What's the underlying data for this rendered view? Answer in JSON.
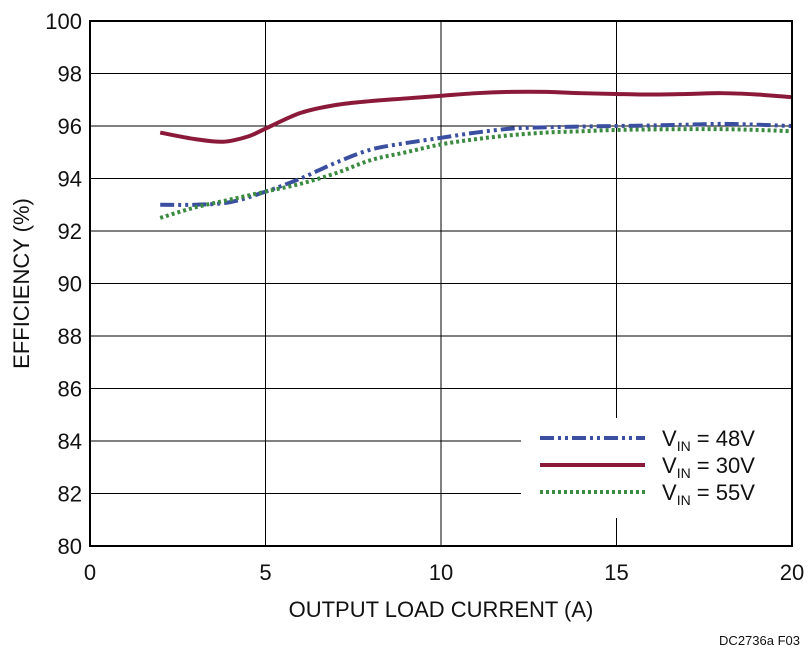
{
  "chart_data": {
    "type": "line",
    "title": "",
    "xlabel": "OUTPUT LOAD CURRENT (A)",
    "ylabel": "EFFICIENCY (%)",
    "xlim": [
      0,
      20
    ],
    "ylim": [
      80,
      100
    ],
    "xticks": [
      "0",
      "5",
      "10",
      "15",
      "20"
    ],
    "yticks": [
      "80",
      "82",
      "84",
      "86",
      "88",
      "90",
      "92",
      "94",
      "96",
      "98",
      "100"
    ],
    "grid": true,
    "legend_position": "bottom-right",
    "series": [
      {
        "legend_main": "V",
        "legend_sub": "IN",
        "legend_rest": " = 48V",
        "color": "#3a4fa0",
        "style": "dash-dot",
        "x": [
          2,
          3,
          4,
          5,
          6,
          7,
          8,
          9,
          10,
          11,
          12,
          13,
          14,
          15,
          16,
          17,
          18,
          19,
          20
        ],
        "y": [
          93.0,
          93.0,
          93.1,
          93.5,
          94.0,
          94.6,
          95.1,
          95.35,
          95.55,
          95.75,
          95.9,
          95.95,
          95.98,
          96.0,
          96.02,
          96.05,
          96.08,
          96.05,
          96.0
        ]
      },
      {
        "legend_main": "V",
        "legend_sub": "IN",
        "legend_rest": " = 30V",
        "color": "#8b1a3a",
        "style": "solid",
        "x": [
          2,
          3,
          3.8,
          4.5,
          5,
          6,
          7,
          8,
          9,
          10,
          11,
          12,
          13,
          14,
          15,
          16,
          17,
          18,
          19,
          20
        ],
        "y": [
          95.75,
          95.5,
          95.4,
          95.6,
          95.9,
          96.5,
          96.8,
          96.95,
          97.05,
          97.15,
          97.25,
          97.3,
          97.3,
          97.25,
          97.22,
          97.2,
          97.22,
          97.25,
          97.2,
          97.1
        ]
      },
      {
        "legend_main": "V",
        "legend_sub": "IN",
        "legend_rest": " = 55V",
        "color": "#3a8a40",
        "style": "dotted",
        "x": [
          2,
          3,
          4,
          5,
          6,
          7,
          8,
          9,
          10,
          11,
          12,
          13,
          14,
          15,
          16,
          17,
          18,
          19,
          20
        ],
        "y": [
          92.5,
          92.9,
          93.2,
          93.5,
          93.8,
          94.2,
          94.7,
          95.0,
          95.3,
          95.5,
          95.65,
          95.75,
          95.8,
          95.85,
          95.87,
          95.88,
          95.88,
          95.85,
          95.8
        ]
      }
    ]
  },
  "figure_id": "DC2736a F03"
}
